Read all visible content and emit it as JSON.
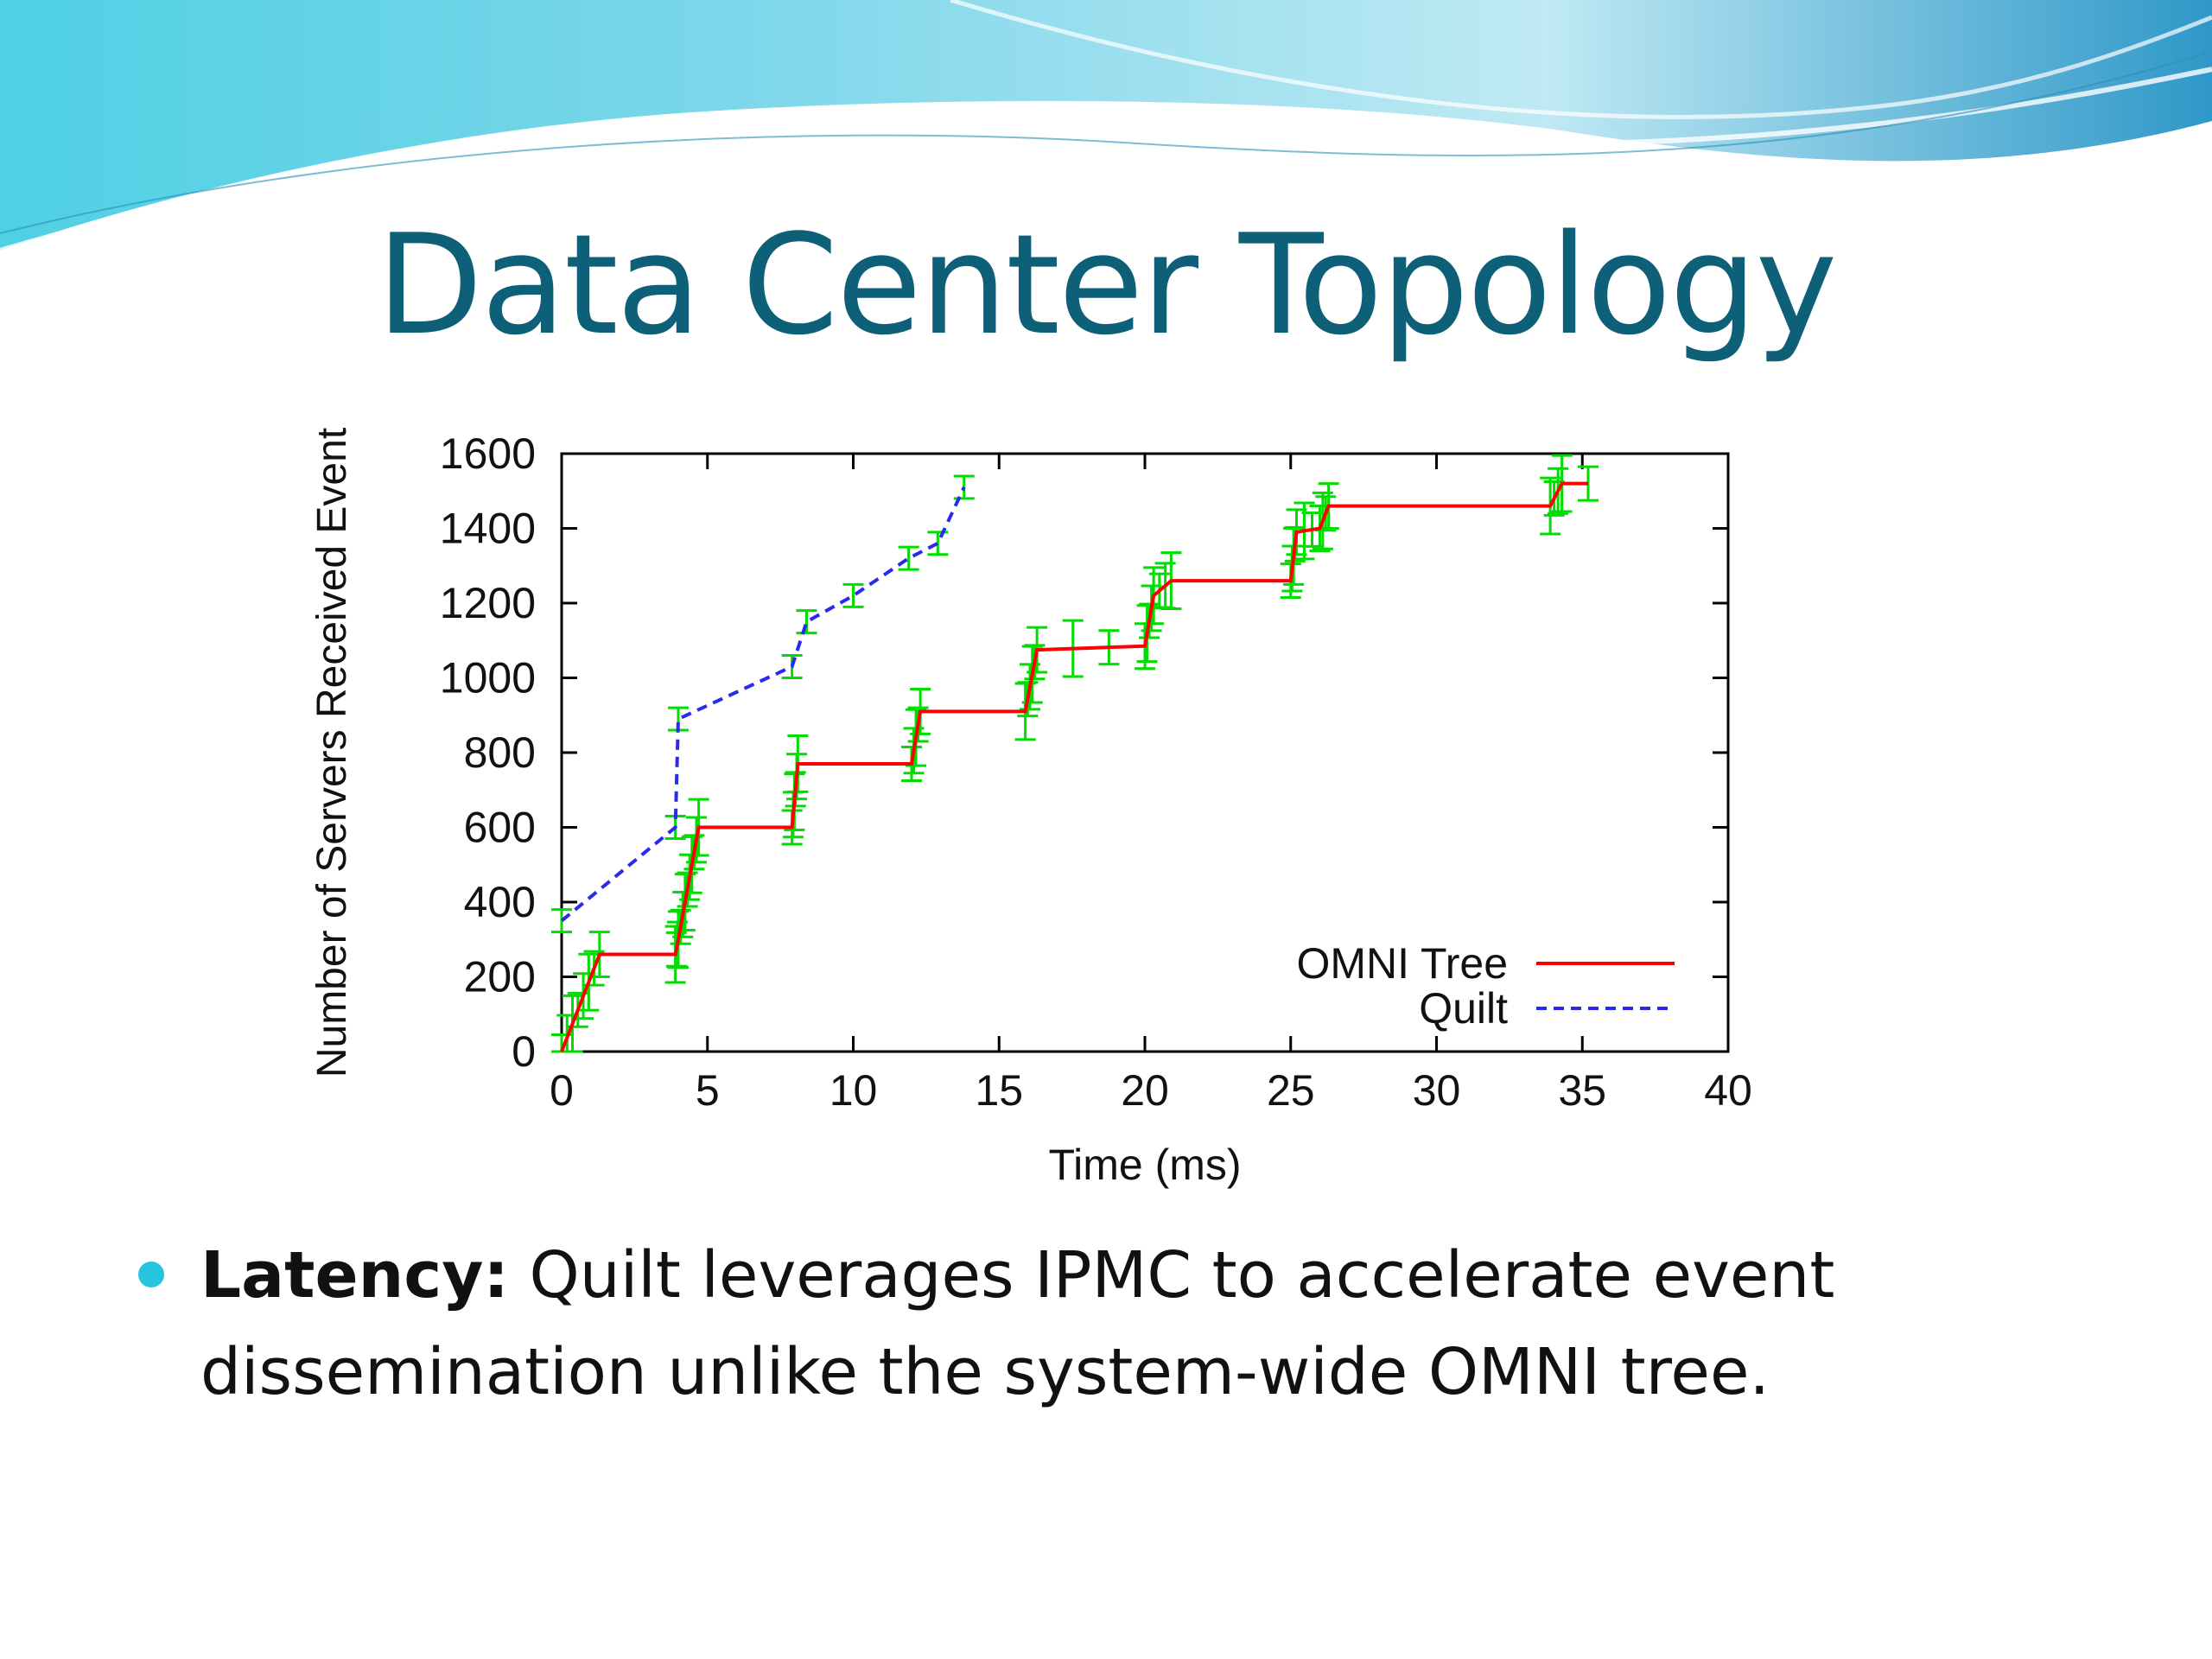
{
  "slide": {
    "title": "Data Center Topology",
    "bullet_label": "Latency:",
    "bullet_line1": " Quilt leverages IPMC to accelerate event",
    "bullet_line2": "dissemination unlike  the system-wide OMNI tree."
  },
  "colors": {
    "title": "#0e6078",
    "bullet": "#27c4df",
    "omni": "#ff0000",
    "quilt": "#2a2aee",
    "errorbar": "#00dd00"
  },
  "chart_data": {
    "type": "line",
    "xlabel": "Time (ms)",
    "ylabel": "Number of Servers Received Event",
    "xlim": [
      0,
      40
    ],
    "ylim": [
      0,
      1600
    ],
    "xticks": [
      0,
      5,
      10,
      15,
      20,
      25,
      30,
      35,
      40
    ],
    "yticks": [
      0,
      200,
      400,
      600,
      800,
      1000,
      1200,
      1400,
      1600
    ],
    "legend_position": "bottom-right",
    "series": [
      {
        "name": "OMNI Tree",
        "style": "solid",
        "color": "#ff0000",
        "x": [
          0,
          1.3,
          3.9,
          4.0,
          4.7,
          7.9,
          8.1,
          12.0,
          12.3,
          15.9,
          16.3,
          20.0,
          20.3,
          20.9,
          25.0,
          25.2,
          26.0,
          26.3,
          33.9,
          34.3,
          35.2
        ],
        "y": [
          0,
          260,
          260,
          300,
          600,
          600,
          770,
          770,
          910,
          910,
          1075,
          1085,
          1220,
          1260,
          1260,
          1390,
          1400,
          1460,
          1460,
          1520,
          1520
        ]
      },
      {
        "name": "Quilt",
        "style": "dashed",
        "color": "#2a2aee",
        "x": [
          0,
          3.9,
          4.0,
          7.9,
          8.4,
          10.0,
          11.9,
          12.9,
          13.8
        ],
        "y": [
          350,
          600,
          890,
          1030,
          1150,
          1220,
          1320,
          1360,
          1510
        ]
      }
    ]
  }
}
